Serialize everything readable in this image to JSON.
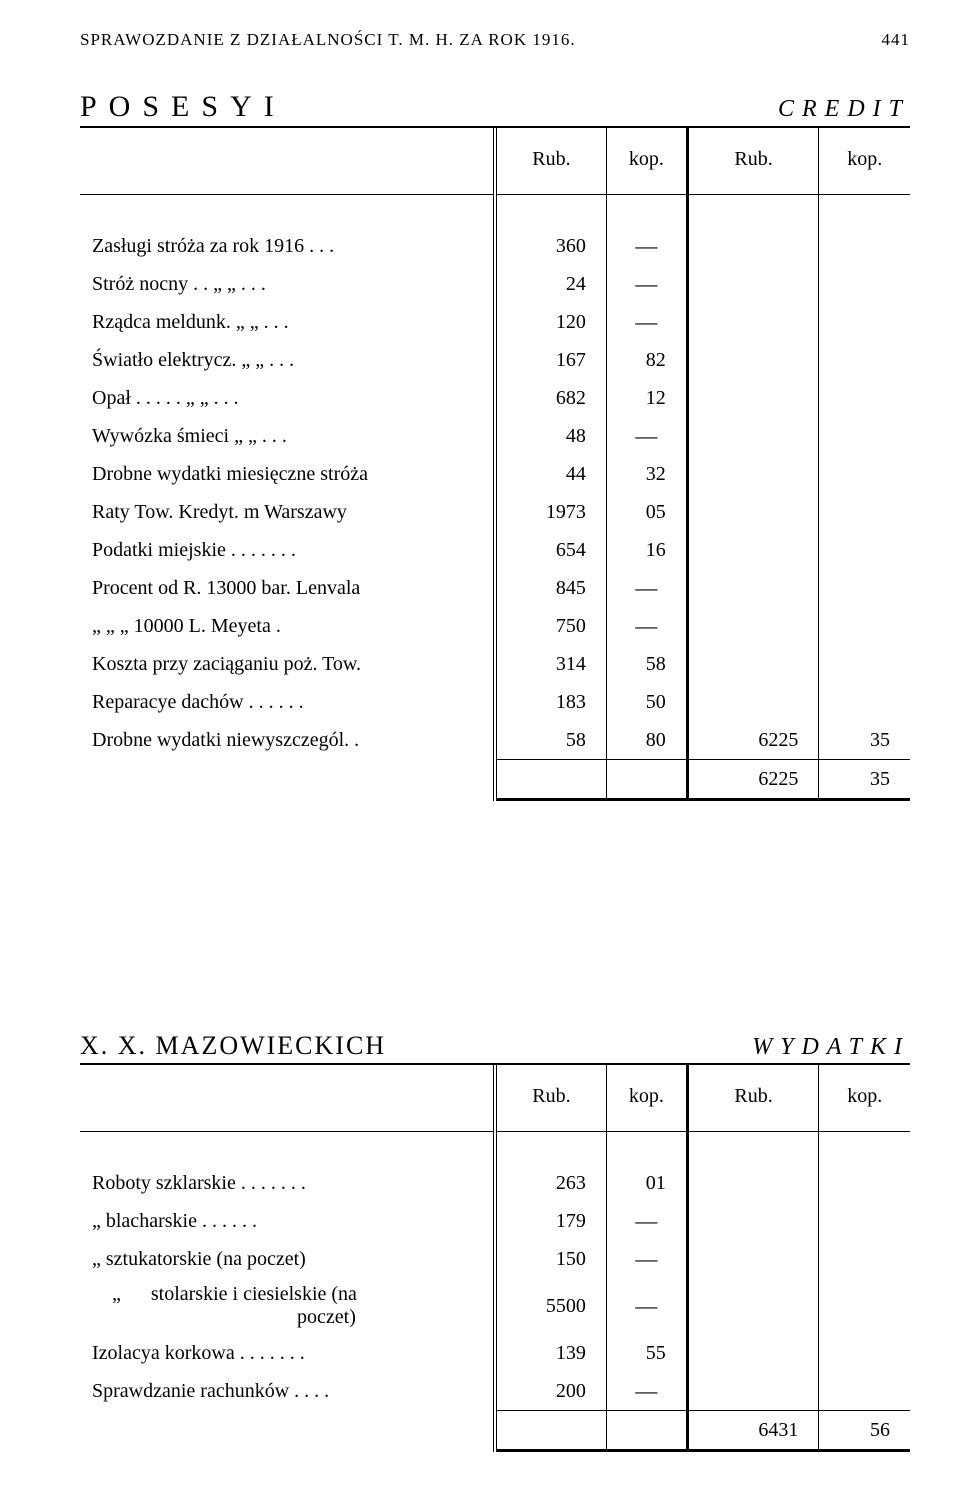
{
  "page_header": {
    "title": "SPRAWOZDANIE Z DZIAŁALNOŚCI T. M. H. ZA ROK 1916.",
    "page_number": "441"
  },
  "section1": {
    "title_left": "POSESYI",
    "title_right": "CREDIT",
    "columns": {
      "rub": "Rub.",
      "kop": "kop."
    },
    "rows": [
      {
        "desc": "Zasługi stróża za rok 1916   .   .   .",
        "rub1": "360",
        "kop1": "—"
      },
      {
        "desc": "Stróż nocny  .   .   „    „   .   .   .",
        "rub1": "24",
        "kop1": "—"
      },
      {
        "desc": "Rządca meldunk.  „    „   .   .   .",
        "rub1": "120",
        "kop1": "—"
      },
      {
        "desc": "Światło elektrycz.  „    „   .   .   .",
        "rub1": "167",
        "kop1": "82"
      },
      {
        "desc": "Opał  .   .   .   .   .   „    „   .   .   .",
        "rub1": "682",
        "kop1": "12"
      },
      {
        "desc": "Wywózka śmieci   „    „   .   .   .",
        "rub1": "48",
        "kop1": "—"
      },
      {
        "desc": "Drobne wydatki miesięczne stróża",
        "rub1": "44",
        "kop1": "32"
      },
      {
        "desc": "Raty Tow. Kredyt. m Warszawy",
        "rub1": "1973",
        "kop1": "05"
      },
      {
        "desc": "Podatki miejskie  .   .   .   .   .   .   .",
        "rub1": "654",
        "kop1": "16"
      },
      {
        "desc": "Procent od R. 13000 bar. Lenvala",
        "rub1": "845",
        "kop1": "—"
      },
      {
        "desc": "    „       „     „  10000 L. Meyeta   .",
        "rub1": "750",
        "kop1": "—"
      },
      {
        "desc": "Koszta przy zaciąganiu poż. Tow.",
        "rub1": "314",
        "kop1": "58"
      },
      {
        "desc": "Reparacye dachów  .   .   .   .   .   .",
        "rub1": "183",
        "kop1": "50"
      },
      {
        "desc": "Drobne wydatki niewyszczegól.  .",
        "rub1": "58",
        "kop1": "80",
        "rub2": "6225",
        "kop2": "35"
      }
    ],
    "total": {
      "rub2": "6225",
      "kop2": "35"
    }
  },
  "section2": {
    "title_left": "X. X. MAZOWIECKICH",
    "title_right": "WYDATKI",
    "columns": {
      "rub": "Rub.",
      "kop": "kop."
    },
    "rows": [
      {
        "desc": "Roboty szklarskie .   .   .   .   .   .   .",
        "rub1": "263",
        "kop1": "01"
      },
      {
        "desc": "    „      blacharskie  .   .   .   .   .   .",
        "rub1": "179",
        "kop1": "—"
      },
      {
        "desc": "    „      sztukatorskie  (na  poczet)",
        "rub1": "150",
        "kop1": "—"
      },
      {
        "desc": "    „      stolarskie i ciesielskie (na\n                                         poczet)",
        "rub1": "5500",
        "kop1": "—"
      },
      {
        "desc": "Izolacya korkowa .   .   .   .   .   .   .",
        "rub1": "139",
        "kop1": "55"
      },
      {
        "desc": "Sprawdzanie rachunków  .   .   .   .",
        "rub1": "200",
        "kop1": "—"
      }
    ],
    "total": {
      "rub2": "6431",
      "kop2": "56"
    }
  }
}
